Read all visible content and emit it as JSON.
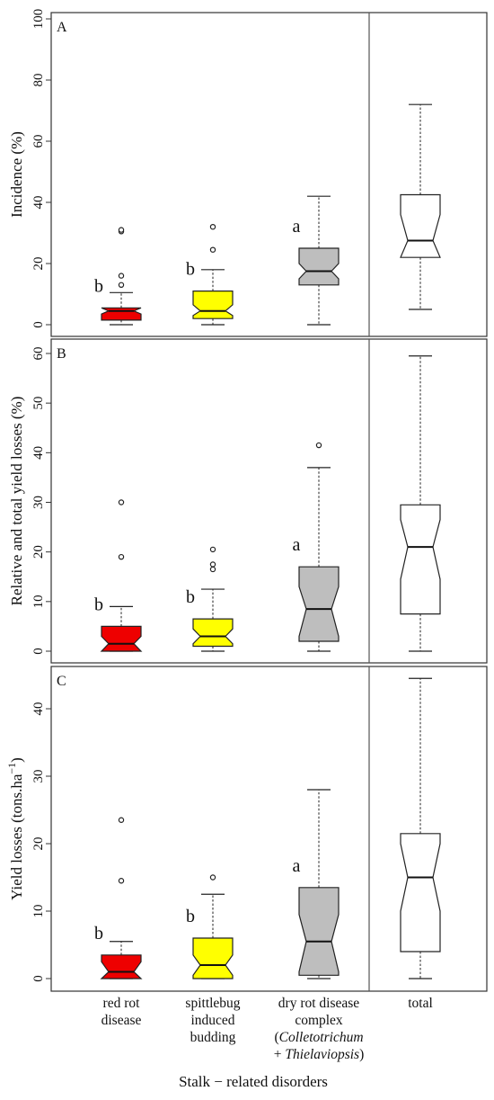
{
  "colors": {
    "red_rot": "#ee0000",
    "spittlebug": "#ffff00",
    "dry_rot": "#bebebe",
    "total": "#ffffff",
    "frame": "#333333"
  },
  "chart_data": [
    {
      "type": "box",
      "panel": "A",
      "ylabel": "Incidence (%)",
      "ylim": [
        0,
        100
      ],
      "yticks": [
        0,
        20,
        40,
        60,
        80,
        100
      ],
      "boxes": [
        {
          "category": "red rot disease",
          "color": "red_rot",
          "whisker_low": 0,
          "q1": 1.5,
          "notch_low": 3.5,
          "median": 4.5,
          "notch_high": 5.5,
          "q3": 5.5,
          "whisker_high": 10.5,
          "outliers": [
            13,
            16,
            30.5,
            31
          ],
          "letter": "b"
        },
        {
          "category": "spittlebug induced budding",
          "color": "spittlebug",
          "whisker_low": 0,
          "q1": 2,
          "notch_low": 3,
          "median": 4.5,
          "notch_high": 6.5,
          "q3": 11,
          "whisker_high": 18,
          "outliers": [
            24.5,
            32
          ],
          "letter": "b"
        },
        {
          "category": "dry rot disease complex",
          "color": "dry_rot",
          "whisker_low": 0,
          "q1": 13,
          "notch_low": 15,
          "median": 17.5,
          "notch_high": 20,
          "q3": 25,
          "whisker_high": 42,
          "outliers": [],
          "letter": "a"
        },
        {
          "category": "total",
          "color": "total",
          "whisker_low": 5,
          "q1": 22,
          "notch_low": 22,
          "median": 27.5,
          "notch_high": 36,
          "q3": 42.5,
          "whisker_high": 72,
          "outliers": [],
          "letter": ""
        }
      ]
    },
    {
      "type": "box",
      "panel": "B",
      "ylabel": "Relative and total yield losses (%)",
      "ylim": [
        0,
        60
      ],
      "yticks": [
        0,
        10,
        20,
        30,
        40,
        50,
        60
      ],
      "boxes": [
        {
          "category": "red rot disease",
          "color": "red_rot",
          "whisker_low": 0,
          "q1": 0,
          "notch_low": 0,
          "median": 1.5,
          "notch_high": 3,
          "q3": 5,
          "whisker_high": 9,
          "outliers": [
            19,
            30
          ],
          "letter": "b"
        },
        {
          "category": "spittlebug induced budding",
          "color": "spittlebug",
          "whisker_low": 0,
          "q1": 1,
          "notch_low": 1.5,
          "median": 3,
          "notch_high": 4.5,
          "q3": 6.5,
          "whisker_high": 12.5,
          "outliers": [
            16.5,
            17.5,
            20.5
          ],
          "letter": "b"
        },
        {
          "category": "dry rot disease complex",
          "color": "dry_rot",
          "whisker_low": 0,
          "q1": 2,
          "notch_low": 3,
          "median": 8.5,
          "notch_high": 13,
          "q3": 17,
          "whisker_high": 37,
          "outliers": [
            41.5
          ],
          "letter": "a"
        },
        {
          "category": "total",
          "color": "total",
          "whisker_low": 0,
          "q1": 7.5,
          "notch_low": 14.5,
          "median": 21,
          "notch_high": 26.5,
          "q3": 29.5,
          "whisker_high": 59.5,
          "outliers": [],
          "letter": ""
        }
      ]
    },
    {
      "type": "box",
      "panel": "C",
      "ylabel": "Yield losses (tons.ha",
      "ylabel_sup": "−1",
      "ylabel_end": ")",
      "ylim": [
        0,
        45
      ],
      "yticks": [
        0,
        10,
        20,
        30,
        40
      ],
      "boxes": [
        {
          "category": "red rot disease",
          "color": "red_rot",
          "whisker_low": 0,
          "q1": 0,
          "notch_low": 0,
          "median": 1,
          "notch_high": 2.5,
          "q3": 3.5,
          "whisker_high": 5.5,
          "outliers": [
            14.5,
            23.5
          ],
          "letter": "b"
        },
        {
          "category": "spittlebug induced budding",
          "color": "spittlebug",
          "whisker_low": 0,
          "q1": 0,
          "notch_low": 0.5,
          "median": 2,
          "notch_high": 3.5,
          "q3": 6,
          "whisker_high": 12.5,
          "outliers": [
            15
          ],
          "letter": "b"
        },
        {
          "category": "dry rot disease complex",
          "color": "dry_rot",
          "whisker_low": 0,
          "q1": 0.5,
          "notch_low": 1,
          "median": 5.5,
          "notch_high": 9.5,
          "q3": 13.5,
          "whisker_high": 28,
          "outliers": [],
          "letter": "a"
        },
        {
          "category": "total",
          "color": "total",
          "whisker_low": 0,
          "q1": 4,
          "notch_low": 10,
          "median": 15,
          "notch_high": 20,
          "q3": 21.5,
          "whisker_high": 44.5,
          "outliers": [],
          "letter": ""
        }
      ]
    }
  ],
  "x_axis": {
    "title": "Stalk − related disorders",
    "categories": [
      {
        "lines": [
          [
            "red rot",
            false
          ],
          [
            "disease",
            false
          ]
        ]
      },
      {
        "lines": [
          [
            "spittlebug",
            false
          ],
          [
            "induced",
            false
          ],
          [
            "budding",
            false
          ]
        ]
      },
      {
        "lines": [
          [
            "dry rot disease",
            false
          ],
          [
            "complex",
            false
          ],
          [
            "(Colletotrichum",
            true
          ],
          [
            "+ Thielaviopsis)",
            true
          ]
        ]
      },
      {
        "lines": [
          [
            "total",
            false
          ]
        ]
      }
    ]
  }
}
